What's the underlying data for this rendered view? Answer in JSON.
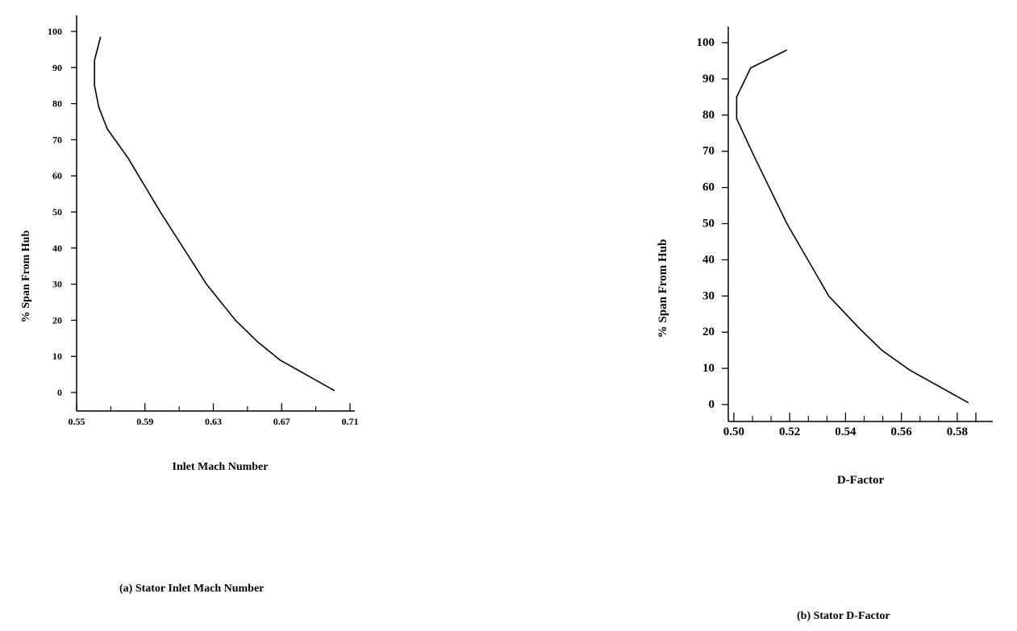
{
  "chart_data": [
    {
      "type": "line",
      "title": "",
      "xlabel": "Inlet Mach Number",
      "ylabel": "% Span From Hub",
      "caption": "(a)  Stator Inlet Mach Number",
      "xlim": [
        0.55,
        0.71
      ],
      "ylim": [
        0,
        100
      ],
      "xticks": [
        "0.55",
        "0.59",
        "0.63",
        "0.67",
        "0.71"
      ],
      "yticks": [
        "0",
        "10",
        "20",
        "30",
        "40",
        "50",
        "60",
        "70",
        "80",
        "90",
        "100"
      ],
      "series": [
        {
          "x": [
            0.701,
            0.669,
            0.656,
            0.643,
            0.626,
            0.599,
            0.58,
            0.568,
            0.563,
            0.5605,
            0.5605,
            0.564
          ],
          "y": [
            0.5,
            9,
            14,
            20,
            30,
            50,
            65,
            73,
            79,
            85,
            92,
            98.5
          ]
        }
      ]
    },
    {
      "type": "line",
      "title": "",
      "xlabel": "D-Factor",
      "ylabel": "% Span From Hub",
      "caption": "(b)  Stator D-Factor",
      "xlim": [
        0.498,
        0.591
      ],
      "ylim": [
        0,
        100
      ],
      "xticks": [
        "0.50",
        "0.52",
        "0.54",
        "0.56",
        "0.58"
      ],
      "yticks": [
        "0",
        "10",
        "20",
        "30",
        "40",
        "50",
        "60",
        "70",
        "80",
        "90",
        "100"
      ],
      "series": [
        {
          "x": [
            0.584,
            0.563,
            0.553,
            0.545,
            0.534,
            0.519,
            0.507,
            0.501,
            0.501,
            0.506,
            0.519
          ],
          "y": [
            0.5,
            9.5,
            15,
            21,
            30,
            50,
            69,
            79,
            85,
            93,
            98
          ]
        }
      ]
    }
  ]
}
